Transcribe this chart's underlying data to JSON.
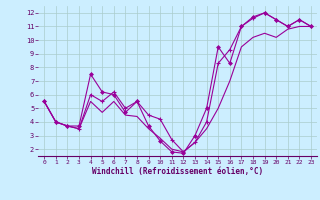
{
  "background_color": "#cceeff",
  "grid_color": "#aacccc",
  "line_color": "#990099",
  "xlabel": "Windchill (Refroidissement éolien,°C)",
  "ylim": [
    1.5,
    12.5
  ],
  "xlim": [
    -0.5,
    23.5
  ],
  "yticks": [
    2,
    3,
    4,
    5,
    6,
    7,
    8,
    9,
    10,
    11,
    12
  ],
  "xticks": [
    0,
    1,
    2,
    3,
    4,
    5,
    6,
    7,
    8,
    9,
    10,
    11,
    12,
    13,
    14,
    15,
    16,
    17,
    18,
    19,
    20,
    21,
    22,
    23
  ],
  "line1_x": [
    0,
    1,
    2,
    3,
    4,
    5,
    6,
    7,
    8,
    9,
    10,
    11,
    12,
    13,
    14,
    15,
    16,
    17,
    18,
    19,
    20,
    21,
    22,
    23
  ],
  "line1_y": [
    5.5,
    4.0,
    3.7,
    3.7,
    7.5,
    6.2,
    6.0,
    4.7,
    5.5,
    3.7,
    2.6,
    1.8,
    1.7,
    3.0,
    5.0,
    9.5,
    8.3,
    11.0,
    11.7,
    12.0,
    11.5,
    11.0,
    11.5,
    11.0
  ],
  "line2_x": [
    0,
    1,
    2,
    3,
    4,
    5,
    6,
    7,
    8,
    9,
    10,
    11,
    12,
    13,
    14,
    15,
    16,
    17,
    18,
    19,
    20,
    21,
    22,
    23
  ],
  "line2_y": [
    5.5,
    4.0,
    3.7,
    3.5,
    6.0,
    5.5,
    6.2,
    5.0,
    5.5,
    4.5,
    4.2,
    2.7,
    1.8,
    2.5,
    4.0,
    8.3,
    9.3,
    11.0,
    11.6,
    12.0,
    11.5,
    11.0,
    11.5,
    11.0
  ],
  "line3_x": [
    0,
    1,
    2,
    3,
    4,
    5,
    6,
    7,
    8,
    9,
    10,
    11,
    12,
    13,
    14,
    15,
    16,
    17,
    18,
    19,
    20,
    21,
    22,
    23
  ],
  "line3_y": [
    5.5,
    4.0,
    3.7,
    3.5,
    5.5,
    4.7,
    5.5,
    4.5,
    4.4,
    3.5,
    2.8,
    2.0,
    1.8,
    2.5,
    3.5,
    5.0,
    7.0,
    9.5,
    10.2,
    10.5,
    10.2,
    10.8,
    11.0,
    11.0
  ]
}
